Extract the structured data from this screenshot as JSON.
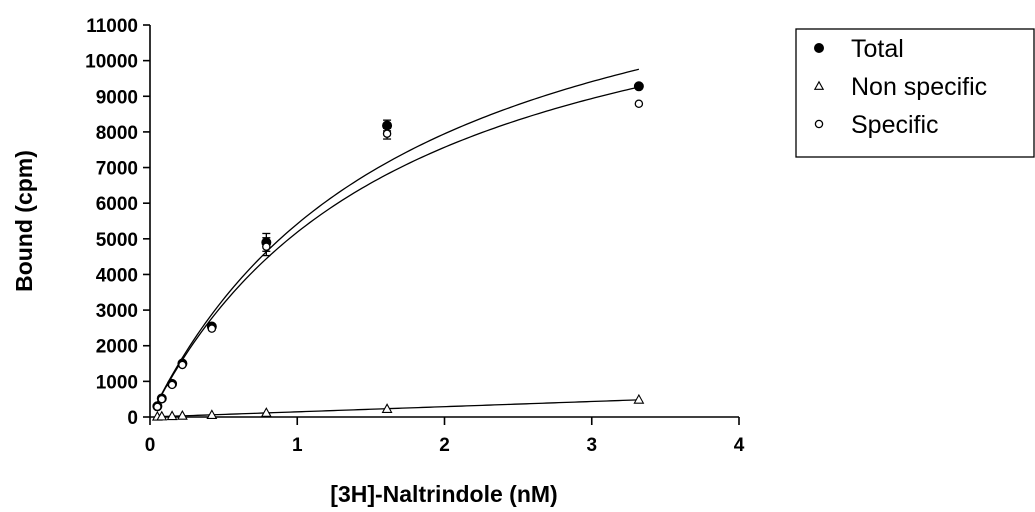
{
  "chart_data": {
    "type": "scatter",
    "xlabel": "[3H]-Naltrindole (nM)",
    "ylabel": "Bound (cpm)",
    "xlim": [
      0,
      4
    ],
    "ylim": [
      0,
      11000
    ],
    "x_ticks": [
      0,
      1,
      2,
      3,
      4
    ],
    "y_ticks": [
      0,
      1000,
      2000,
      3000,
      4000,
      5000,
      6000,
      7000,
      8000,
      9000,
      10000,
      11000
    ],
    "grid": false,
    "legend_position": "right",
    "series": [
      {
        "name": "Total",
        "marker": "filled-circle",
        "x": [
          0.05,
          0.08,
          0.15,
          0.22,
          0.42,
          0.79,
          1.61,
          3.32
        ],
        "y": [
          300,
          520,
          930,
          1500,
          2540,
          4900,
          8180,
          9280
        ],
        "error": [
          0,
          0,
          0,
          0,
          0,
          250,
          150,
          0
        ],
        "fit": {
          "model": "one-site",
          "bmax": 14900,
          "kd": 1.75
        }
      },
      {
        "name": "Non specific",
        "marker": "open-triangle",
        "x": [
          0.05,
          0.08,
          0.15,
          0.22,
          0.42,
          0.79,
          1.61,
          3.32
        ],
        "y": [
          15,
          20,
          30,
          40,
          60,
          120,
          230,
          490
        ],
        "error": [
          0,
          0,
          0,
          0,
          0,
          0,
          0,
          0
        ],
        "fit": {
          "model": "linear",
          "slope": 145,
          "intercept": 0
        }
      },
      {
        "name": "Specific",
        "marker": "open-circle",
        "x": [
          0.05,
          0.08,
          0.15,
          0.22,
          0.42,
          0.79,
          1.61,
          3.32
        ],
        "y": [
          285,
          500,
          900,
          1460,
          2480,
          4780,
          7950,
          8790
        ],
        "error": [
          0,
          0,
          0,
          0,
          0,
          250,
          150,
          0
        ],
        "fit": {
          "model": "one-site",
          "bmax": 14000,
          "kd": 1.7
        }
      }
    ]
  }
}
